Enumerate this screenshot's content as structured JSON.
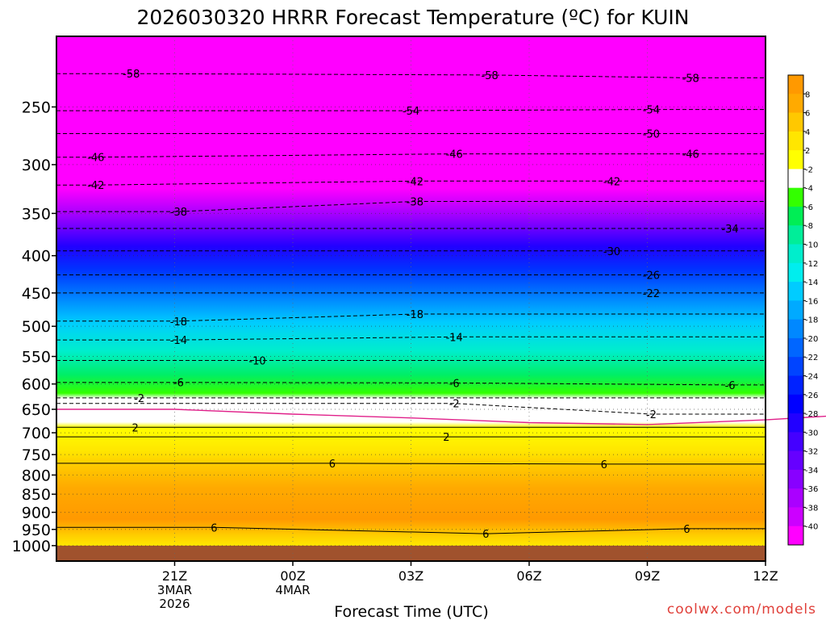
{
  "chart_data": {
    "type": "heatmap",
    "title": "2026030320 HRRR Forecast Temperature (ºC) for KUIN",
    "xlabel": "Forecast Time (UTC)",
    "ylabel": "",
    "credit": "coolwx.com/models",
    "x_range": [
      -2,
      16
    ],
    "y_range_hpa": [
      1050,
      200
    ],
    "x_ticks": [
      {
        "x": 1,
        "lines": [
          "21Z",
          "3MAR",
          "2026"
        ]
      },
      {
        "x": 4,
        "lines": [
          "00Z",
          "4MAR"
        ]
      },
      {
        "x": 7,
        "lines": [
          "03Z"
        ]
      },
      {
        "x": 10,
        "lines": [
          "06Z"
        ]
      },
      {
        "x": 13,
        "lines": [
          "09Z"
        ]
      },
      {
        "x": 16,
        "lines": [
          "12Z"
        ]
      }
    ],
    "y_ticks": [
      250,
      300,
      350,
      400,
      450,
      500,
      550,
      600,
      650,
      700,
      750,
      800,
      850,
      900,
      950,
      1000
    ],
    "colorbar": {
      "labels": [
        "8",
        "6",
        "4",
        "2",
        "-2",
        "-4",
        "-6",
        "-8",
        "-10",
        "-12",
        "-14",
        "-16",
        "-18",
        "-20",
        "-22",
        "-24",
        "-26",
        "-28",
        "-30",
        "-32",
        "-34",
        "-36",
        "-38",
        "-40"
      ],
      "colors": [
        "#ff9900",
        "#ffaa00",
        "#ffc800",
        "#ffe600",
        "#ffff00",
        "#ffffff",
        "#33ff00",
        "#00ee55",
        "#00ee99",
        "#00eecc",
        "#00eeee",
        "#00ccff",
        "#00aaff",
        "#0088ff",
        "#0066ff",
        "#0044ff",
        "#0022ff",
        "#0000ff",
        "#2200ff",
        "#4400ff",
        "#6600ff",
        "#8800ff",
        "#aa00ff",
        "#cc00ff",
        "#ff00ff"
      ]
    },
    "ground_color": "#a0522d",
    "isotherm_labels": [
      {
        "t": "-58",
        "x": -0.1,
        "p": 225
      },
      {
        "t": "-58",
        "x": 9.0,
        "p": 226
      },
      {
        "t": "-58",
        "x": 14.1,
        "p": 228
      },
      {
        "t": "-54",
        "x": 7.0,
        "p": 253
      },
      {
        "t": "-54",
        "x": 13.1,
        "p": 252
      },
      {
        "t": "-50",
        "x": 13.1,
        "p": 272
      },
      {
        "t": "-46",
        "x": -1.0,
        "p": 293
      },
      {
        "t": "-46",
        "x": 8.1,
        "p": 290
      },
      {
        "t": "-46",
        "x": 14.1,
        "p": 290
      },
      {
        "t": "-42",
        "x": -1.0,
        "p": 320
      },
      {
        "t": "-42",
        "x": 7.1,
        "p": 316
      },
      {
        "t": "-42",
        "x": 12.1,
        "p": 316
      },
      {
        "t": "-38",
        "x": 1.1,
        "p": 348
      },
      {
        "t": "-38",
        "x": 7.1,
        "p": 337
      },
      {
        "t": "-34",
        "x": 15.1,
        "p": 367
      },
      {
        "t": "-30",
        "x": 12.1,
        "p": 394
      },
      {
        "t": "-26",
        "x": 13.1,
        "p": 425
      },
      {
        "t": "-22",
        "x": 13.1,
        "p": 450
      },
      {
        "t": "-18",
        "x": 7.1,
        "p": 481
      },
      {
        "t": "-18",
        "x": 1.1,
        "p": 492
      },
      {
        "t": "-14",
        "x": 1.1,
        "p": 522
      },
      {
        "t": "-14",
        "x": 8.1,
        "p": 517
      },
      {
        "t": "-10",
        "x": 3.1,
        "p": 557
      },
      {
        "t": "-6",
        "x": 1.1,
        "p": 597
      },
      {
        "t": "-6",
        "x": 8.1,
        "p": 598
      },
      {
        "t": "-6",
        "x": 15.1,
        "p": 602
      },
      {
        "t": "-2",
        "x": 0.1,
        "p": 627
      },
      {
        "t": "-2",
        "x": 8.1,
        "p": 638
      },
      {
        "t": "-2",
        "x": 13.1,
        "p": 660
      },
      {
        "t": "2",
        "x": 0.0,
        "p": 688
      },
      {
        "t": "2",
        "x": 7.9,
        "p": 709
      },
      {
        "t": "6",
        "x": 5.0,
        "p": 771
      },
      {
        "t": "6",
        "x": 11.9,
        "p": 773
      },
      {
        "t": "6",
        "x": 2.0,
        "p": 944
      },
      {
        "t": "6",
        "x": 8.9,
        "p": 963
      },
      {
        "t": "6",
        "x": 14.0,
        "p": 948
      }
    ]
  }
}
